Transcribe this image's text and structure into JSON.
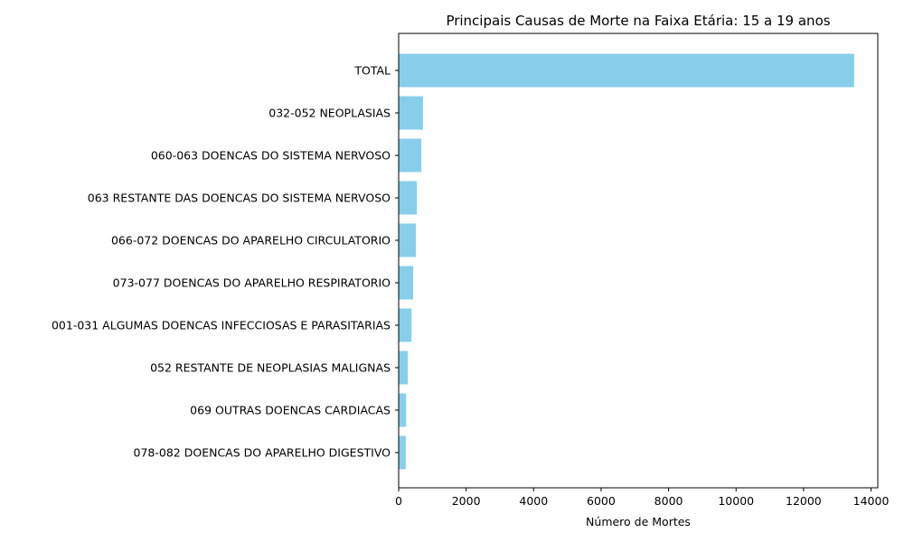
{
  "chart_data": {
    "type": "bar",
    "orientation": "horizontal",
    "title": "Principais Causas de Morte na Faixa Etária: 15 a 19 anos",
    "xlabel": "Número de Mortes",
    "ylabel": "",
    "xlim": [
      0,
      14200
    ],
    "x_ticks": [
      0,
      2000,
      4000,
      6000,
      8000,
      10000,
      12000,
      14000
    ],
    "grid": false,
    "bar_color": "#87CEEB",
    "categories": [
      "TOTAL",
      "032-052 NEOPLASIAS",
      "060-063 DOENCAS DO SISTEMA NERVOSO",
      "063 RESTANTE DAS DOENCAS DO SISTEMA NERVOSO",
      "066-072 DOENCAS DO APARELHO CIRCULATORIO",
      "073-077 DOENCAS DO APARELHO RESPIRATORIO",
      "001-031 ALGUMAS DOENCAS INFECCIOSAS E PARASITARIAS",
      "052 RESTANTE DE NEOPLASIAS MALIGNAS",
      "069 OUTRAS DOENCAS CARDIACAS",
      "078-082 DOENCAS DO APARELHO DIGESTIVO"
    ],
    "values": [
      13500,
      720,
      670,
      540,
      510,
      430,
      380,
      270,
      220,
      210
    ]
  }
}
